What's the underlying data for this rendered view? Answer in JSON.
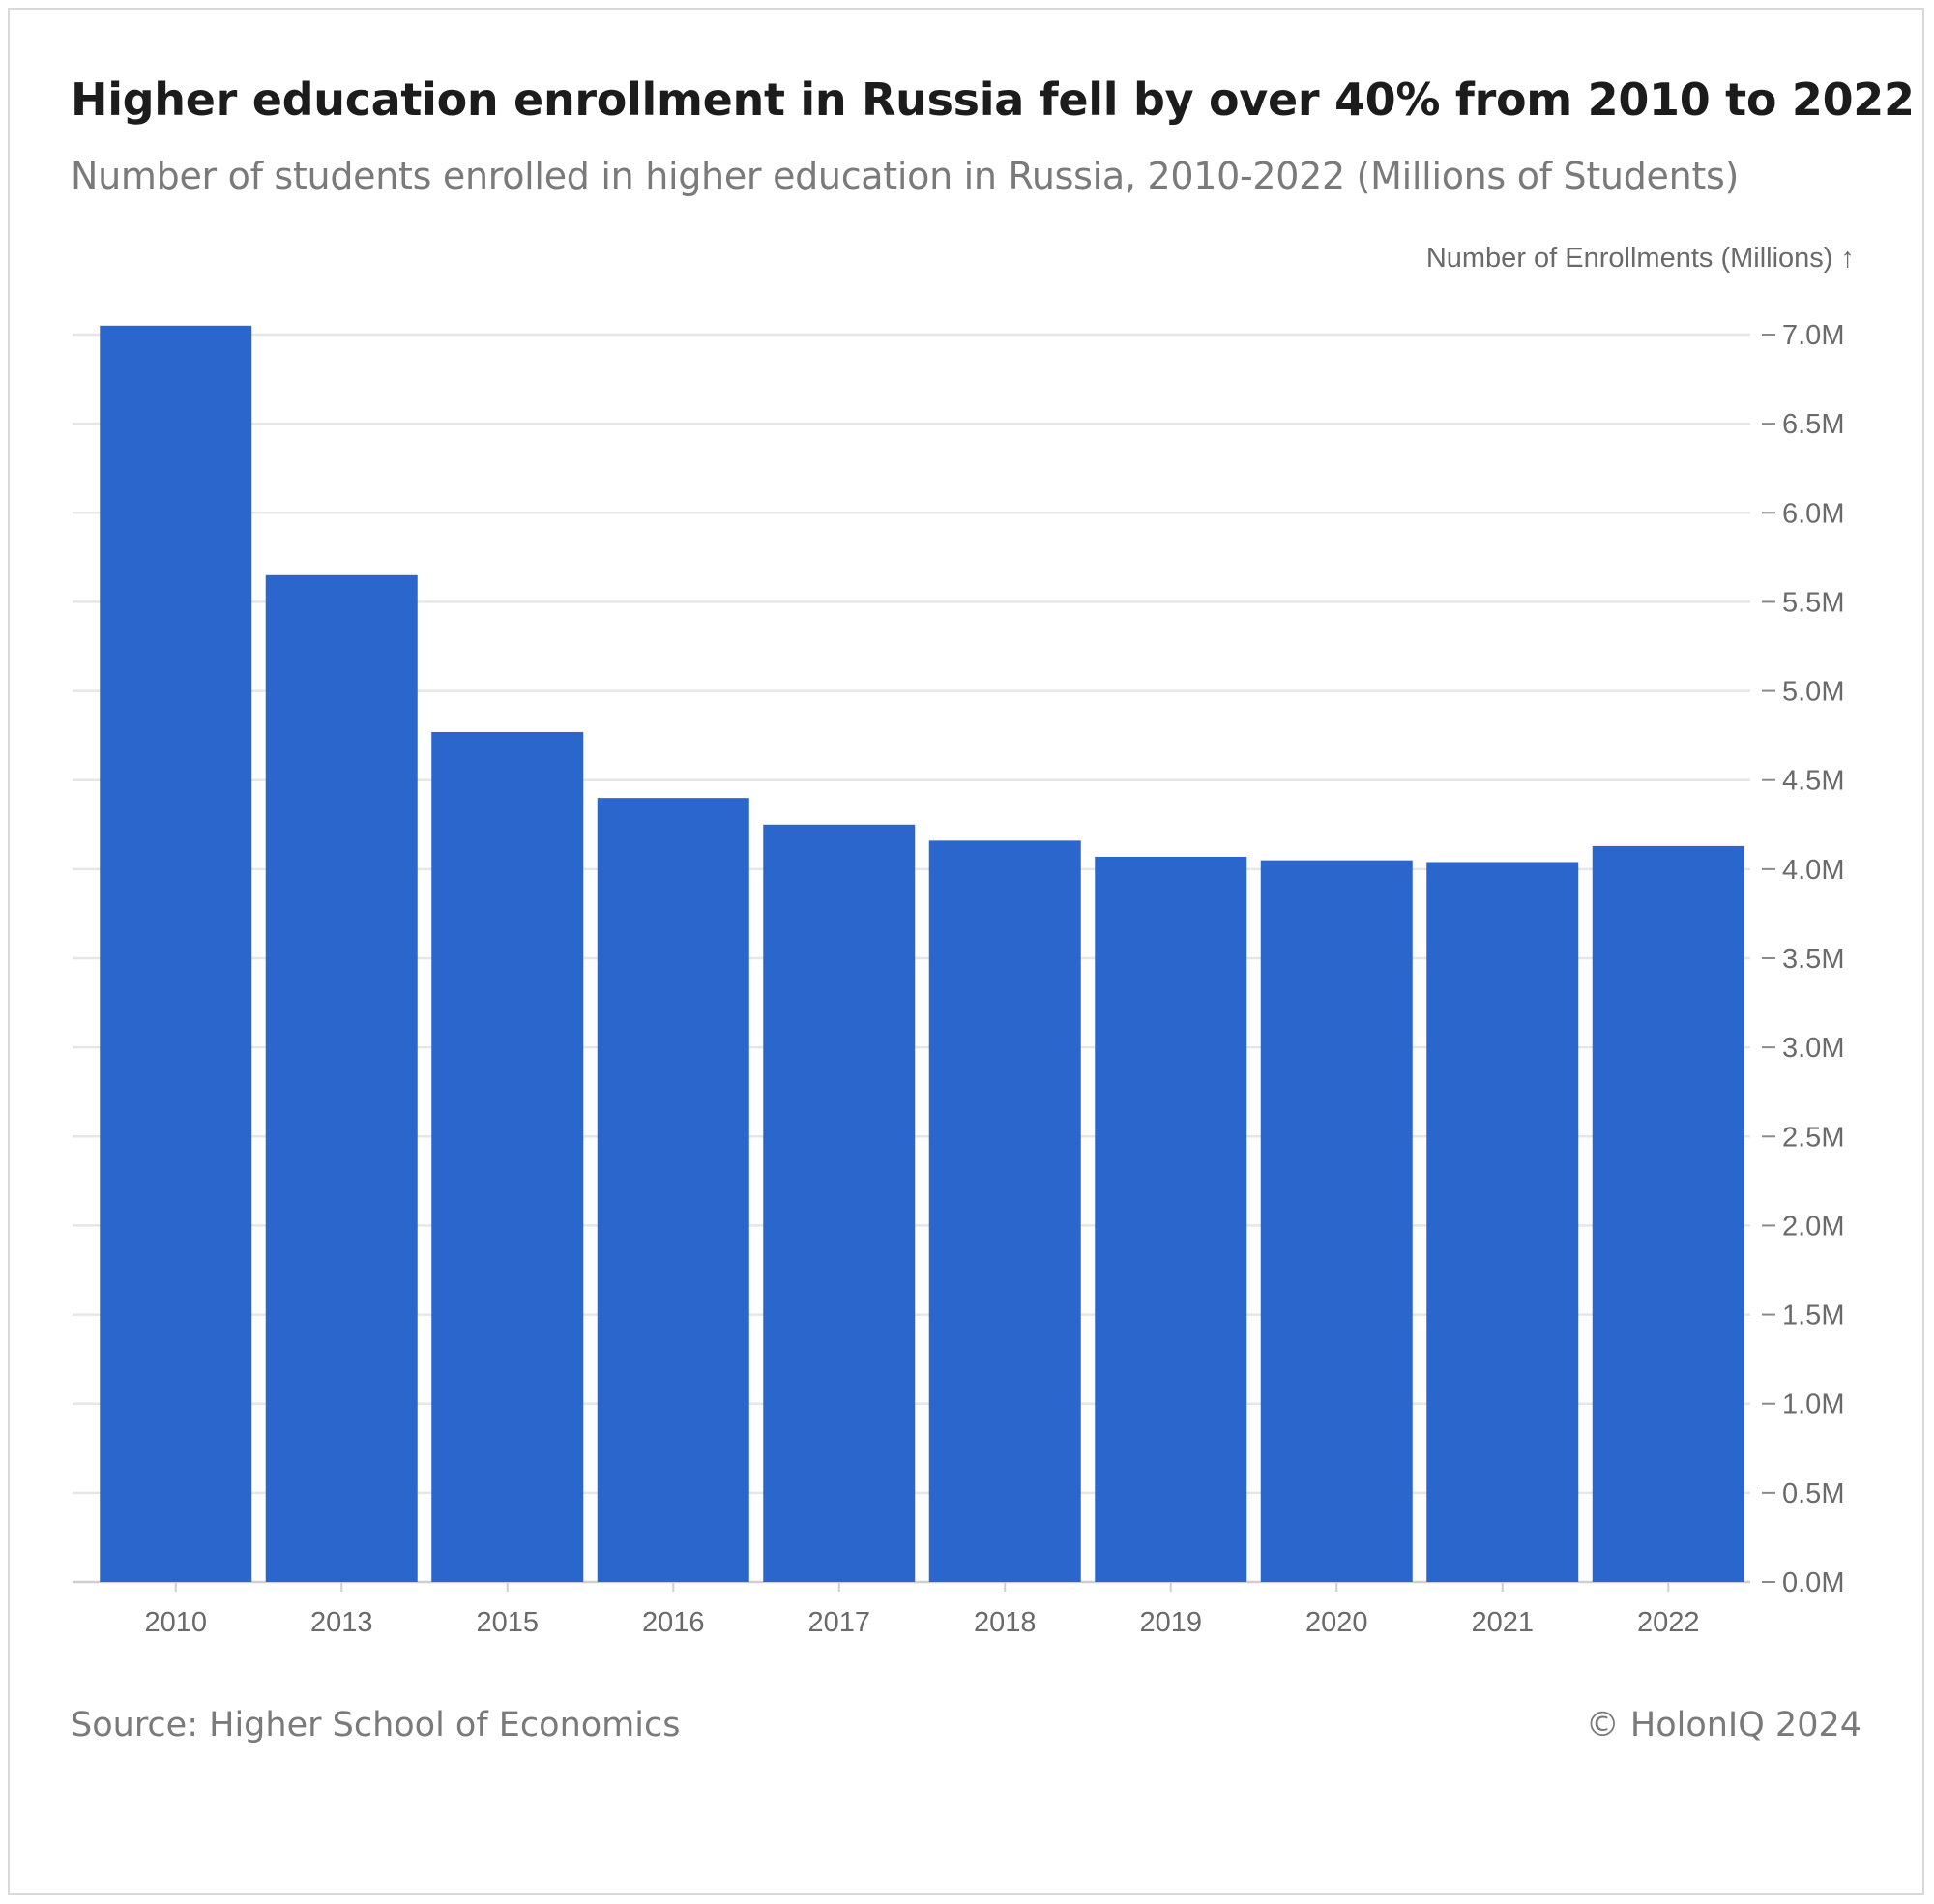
{
  "header": {
    "title": "Higher education enrollment in Russia fell by over 40% from 2010 to 2022",
    "subtitle": "Number of students enrolled in higher education in Russia, 2010-2022 (Millions of Students)"
  },
  "footer": {
    "source": "Source: Higher School of Economics",
    "copyright": "© HolonIQ 2024"
  },
  "colors": {
    "bar": "#2a66cc",
    "grid": "#e6e6e6",
    "axis": "#cfcfcf",
    "tick_text": "#6a6a6a"
  },
  "chart_data": {
    "type": "bar",
    "title": "Higher education enrollment in Russia fell by over 40% from 2010 to 2022",
    "subtitle": "Number of students enrolled in higher education in Russia, 2010-2022 (Millions of Students)",
    "xlabel": "",
    "ylabel": "Number of Enrollments (Millions) ↑",
    "categories": [
      "2010",
      "2013",
      "2015",
      "2016",
      "2017",
      "2018",
      "2019",
      "2020",
      "2021",
      "2022"
    ],
    "values": [
      7.05,
      5.65,
      4.77,
      4.4,
      4.25,
      4.16,
      4.07,
      4.05,
      4.04,
      4.13
    ],
    "ylim": [
      0,
      7
    ],
    "yticks": [
      0,
      0.5,
      1,
      1.5,
      2,
      2.5,
      3,
      3.5,
      4,
      4.5,
      5,
      5.5,
      6,
      6.5,
      7
    ],
    "ytick_labels": [
      "0.0M",
      "0.5M",
      "1.0M",
      "1.5M",
      "2.0M",
      "2.5M",
      "3.0M",
      "3.5M",
      "4.0M",
      "4.5M",
      "5.0M",
      "5.5M",
      "6.0M",
      "6.5M",
      "7.0M"
    ],
    "y_axis_side": "right",
    "grid": true,
    "legend": "none"
  }
}
